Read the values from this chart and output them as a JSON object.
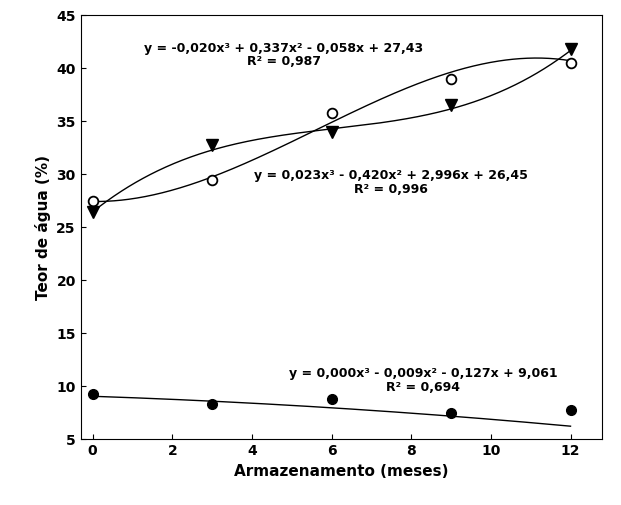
{
  "x_points": [
    0,
    3,
    6,
    9,
    12
  ],
  "y_open_circle": [
    27.5,
    29.5,
    35.8,
    39.0,
    40.5
  ],
  "y_filled_triangle": [
    26.4,
    32.8,
    34.0,
    36.5,
    41.8
  ],
  "y_filled_circle": [
    9.3,
    8.3,
    8.8,
    7.5,
    7.8
  ],
  "eq_open_circle_line1": "y = -0,020x³ + 0,337x² - 0,058x + 27,43",
  "eq_open_circle_line2": "R² = 0,987",
  "eq_filled_triangle_line1": "y = 0,023x³ - 0,420x² + 2,996x + 26,45",
  "eq_filled_triangle_line2": "R² = 0,996",
  "eq_filled_circle_line1": "y = 0,000x³ - 0,009x² - 0,127x + 9,061",
  "eq_filled_circle_line2": "R² = 0,694",
  "coeffs_open_circle": [
    -0.02,
    0.337,
    -0.058,
    27.43
  ],
  "coeffs_filled_triangle": [
    0.023,
    -0.42,
    2.996,
    26.45
  ],
  "coeffs_filled_circle": [
    0.0,
    -0.009,
    -0.127,
    9.061
  ],
  "xlabel": "Armazenamento (meses)",
  "ylabel": "Teor de água (%)",
  "xlim": [
    -0.3,
    12.8
  ],
  "ylim": [
    5,
    45
  ],
  "xticks": [
    0,
    2,
    4,
    6,
    8,
    10,
    12
  ],
  "yticks": [
    5,
    10,
    15,
    20,
    25,
    30,
    35,
    40,
    45
  ],
  "background_color": "#ffffff",
  "line_color": "#000000",
  "ann_oc_x": 4.8,
  "ann_oc_y1": 42.5,
  "ann_oc_y2": 41.2,
  "ann_ft_x": 7.5,
  "ann_ft_y1": 30.5,
  "ann_ft_y2": 29.2,
  "ann_fc_x": 8.3,
  "ann_fc_y1": 11.8,
  "ann_fc_y2": 10.5
}
